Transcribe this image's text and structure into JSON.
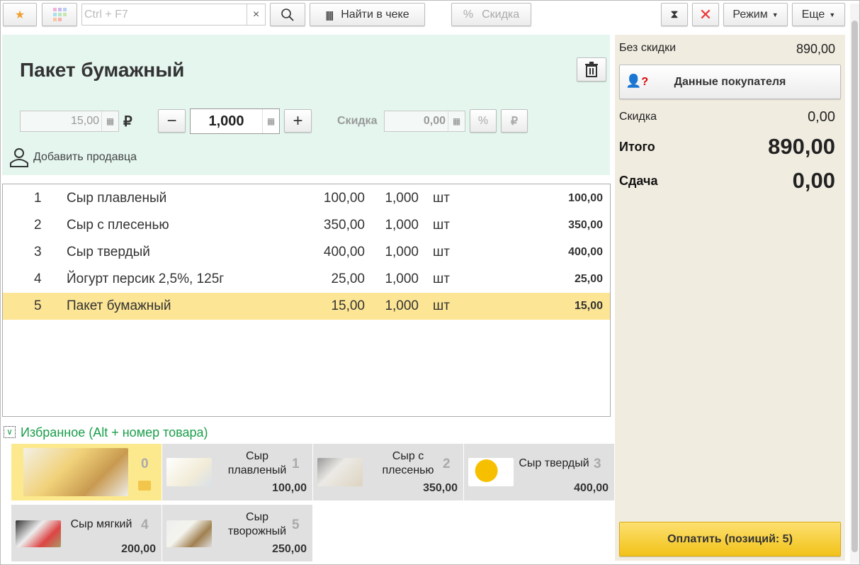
{
  "toolbar": {
    "search_placeholder": "Ctrl + F7",
    "clear": "×",
    "find_in_receipt": "Найти в чеке",
    "discount": "Скидка",
    "mode": "Режим",
    "more": "Еще"
  },
  "item": {
    "title": "Пакет бумажный",
    "price": "15,00",
    "currency": "₽",
    "quantity": "1,000",
    "discount_label": "Скидка",
    "discount_value": "0,00",
    "add_seller": "Добавить продавца"
  },
  "rows": [
    {
      "n": "1",
      "name": "Сыр плавленый",
      "price": "100,00",
      "qty": "1,000",
      "unit": "шт",
      "sum": "100,00"
    },
    {
      "n": "2",
      "name": "Сыр с плесенью",
      "price": "350,00",
      "qty": "1,000",
      "unit": "шт",
      "sum": "350,00"
    },
    {
      "n": "3",
      "name": "Сыр твердый",
      "price": "400,00",
      "qty": "1,000",
      "unit": "шт",
      "sum": "400,00"
    },
    {
      "n": "4",
      "name": "Йогурт персик 2,5%, 125г",
      "price": "25,00",
      "qty": "1,000",
      "unit": "шт",
      "sum": "25,00"
    },
    {
      "n": "5",
      "name": "Пакет бумажный",
      "price": "15,00",
      "qty": "1,000",
      "unit": "шт",
      "sum": "15,00"
    }
  ],
  "favorites": {
    "title": "Избранное (Alt + номер товара)",
    "tiles": [
      {
        "num": "0",
        "name": "",
        "price": ""
      },
      {
        "num": "1",
        "name": "Сыр плавленый",
        "price": "100,00"
      },
      {
        "num": "2",
        "name": "Сыр с плесенью",
        "price": "350,00"
      },
      {
        "num": "3",
        "name": "Сыр твердый",
        "price": "400,00"
      },
      {
        "num": "4",
        "name": "Сыр мягкий",
        "price": "200,00"
      },
      {
        "num": "5",
        "name": "Сыр творожный",
        "price": "250,00"
      }
    ]
  },
  "summary": {
    "no_discount_label": "Без скидки",
    "no_discount": "890,00",
    "customer_button": "Данные покупателя",
    "discount_label": "Скидка",
    "discount": "0,00",
    "total_label": "Итого",
    "total": "890,00",
    "change_label": "Сдача",
    "change": "0,00",
    "pay_button": "Оплатить (позиций: 5)"
  },
  "colors": {
    "accent": "#f5c518",
    "selected_row": "#fce594",
    "green_panel": "#e4f6ee",
    "favorites_title": "#1a9e4a"
  }
}
